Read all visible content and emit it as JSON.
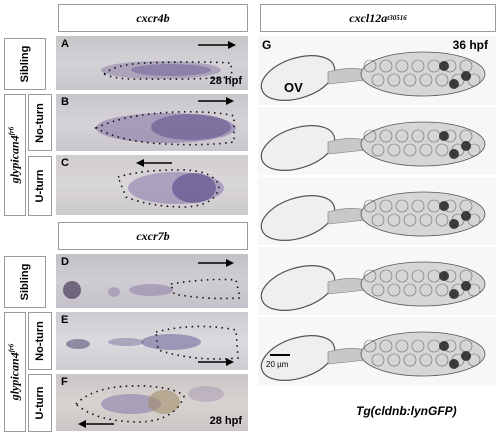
{
  "headers": {
    "left_top": "cxcr4b",
    "left_bottom": "cxcr7b",
    "right_main": "cxcl12a",
    "right_sup": "t30516"
  },
  "row_labels": {
    "sibling": "Sibling",
    "no_turn": "No-turn",
    "u_turn": "U-turn",
    "genotype_main": "glypican4",
    "genotype_sup": "fr6"
  },
  "panels": {
    "A": "A",
    "B": "B",
    "C": "C",
    "D": "D",
    "E": "E",
    "F": "F",
    "G": "G"
  },
  "stages": {
    "top": "28 hpf",
    "bottom": "28 hpf",
    "right": "36 hpf"
  },
  "ov_label": "OV",
  "scale_bar": "20 µm",
  "transgene_caption": "Tg(cldnb:lynGFP)"
}
